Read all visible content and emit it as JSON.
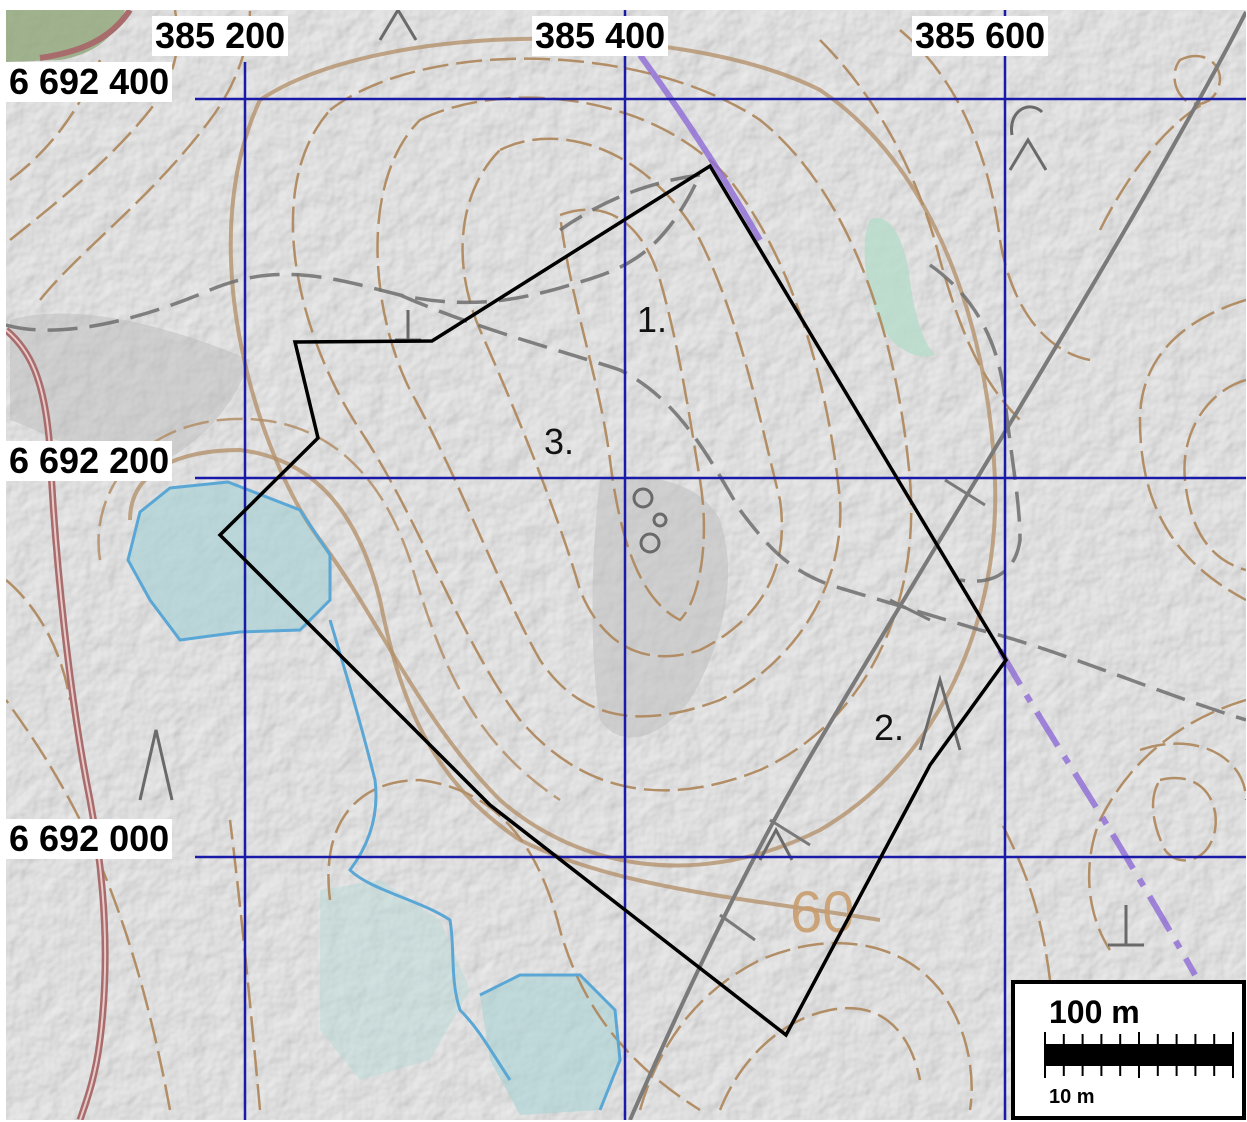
{
  "grid": {
    "easting_labels": [
      "385 200",
      "385 400",
      "385 600"
    ],
    "northing_labels": [
      "6 692 400",
      "6 692 200",
      "6 692 000"
    ]
  },
  "areas": [
    {
      "label": "1."
    },
    {
      "label": "2."
    },
    {
      "label": "3."
    }
  ],
  "contour_value": "60",
  "scale_bar": {
    "main_label": "100 m",
    "small_label": "10 m"
  },
  "colors": {
    "grid": "#1a1aa8",
    "boundary": "#000000",
    "contour": "#b08a60",
    "water": "#5aa7d6",
    "wetland_fill": "#a9d2d4",
    "road": "#a86c6c",
    "power_line": "#7a7a7a",
    "trail": "#6e6e6e",
    "municipal_border": "#8d6ad6"
  }
}
